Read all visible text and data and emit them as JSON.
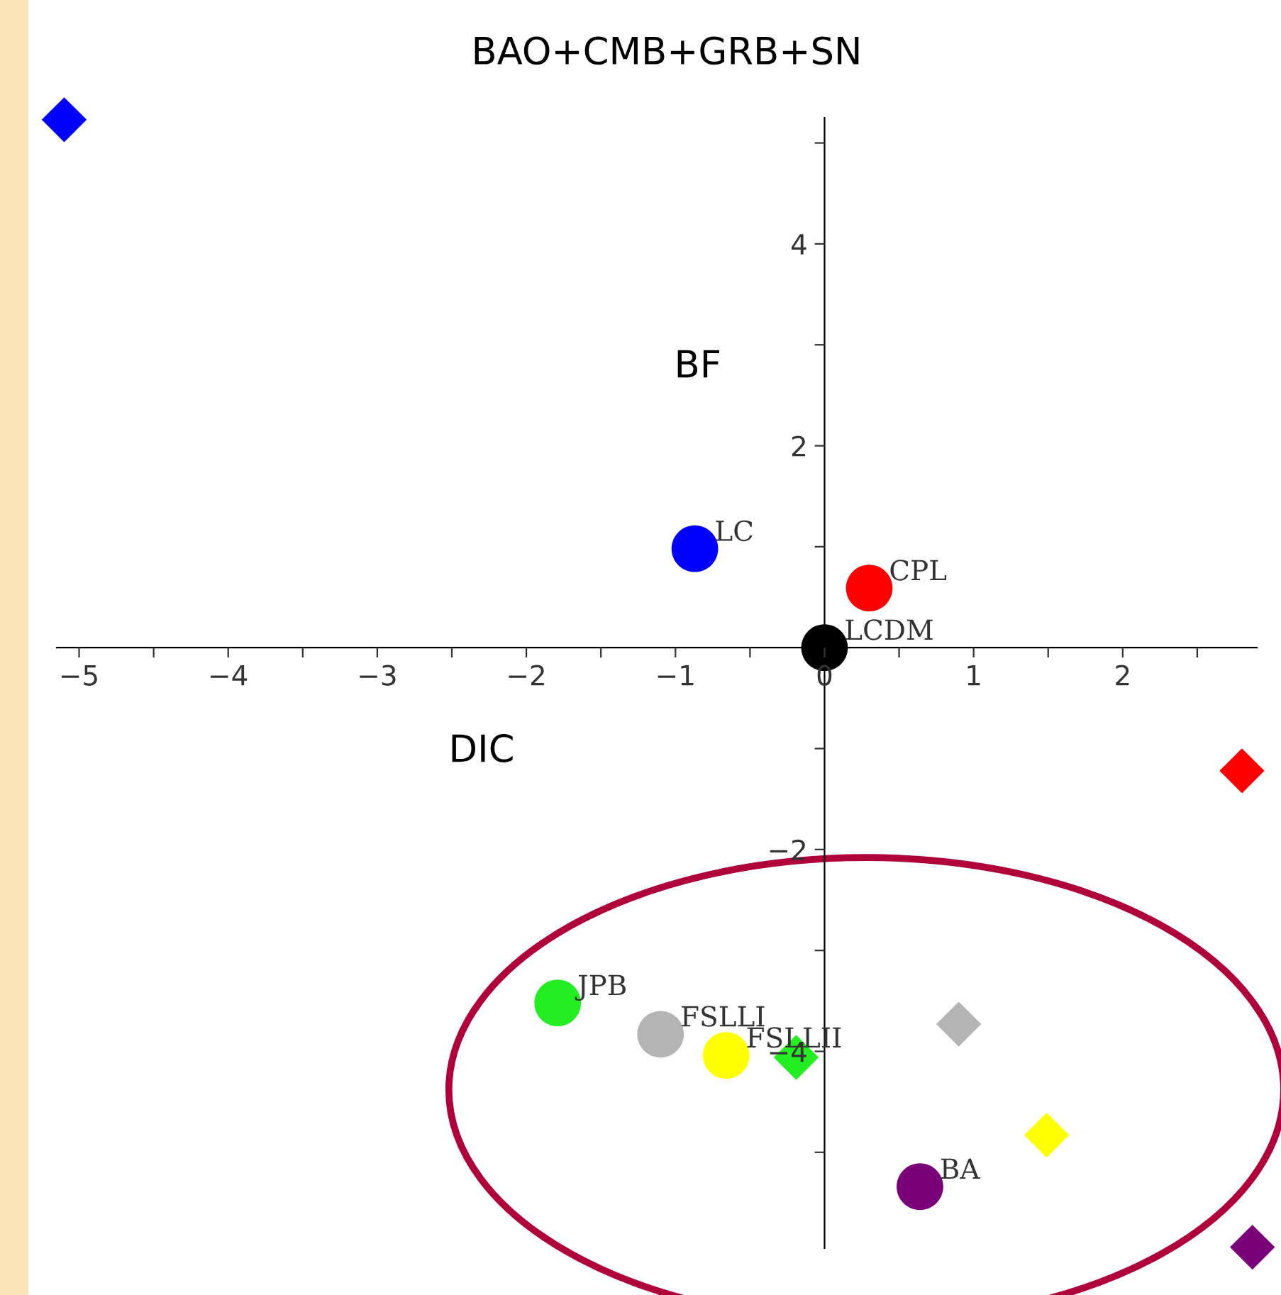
{
  "chart_data": {
    "type": "scatter",
    "title": "BAO+CMB+GRB+SN",
    "xlabel": "DIC",
    "ylabel": "BF",
    "series": [
      {
        "marker": "circle",
        "x": [
          -0.87,
          0.3,
          0,
          -1.79,
          -1.1,
          -0.66,
          0.64
        ],
        "values": [
          0.98,
          0.59,
          0,
          -3.52,
          -3.83,
          -4.04,
          -5.34
        ],
        "colors": [
          "#0000ff",
          "#ff0000",
          "#000000",
          "#22ee22",
          "#b4b4b4",
          "#ffff00",
          "#7a007a"
        ],
        "value_labels": [
          "LC",
          "CPL",
          "LCDM",
          "JPB",
          "FSLLI",
          "FSLLII",
          "BA"
        ]
      },
      {
        "marker": "diamond",
        "x": [
          -5.1,
          2.8,
          -0.19,
          0.9,
          1.49,
          2.87
        ],
        "values": [
          5.23,
          -1.22,
          -4.06,
          -3.73,
          -4.83,
          -5.94
        ],
        "colors": [
          "#0000ff",
          "#ff0000",
          "#22ee22",
          "#b4b4b4",
          "#ffff00",
          "#7a007a"
        ]
      }
    ],
    "xlim": [
      -5.15,
      2.9
    ],
    "ylim": [
      -5.95,
      5.25
    ],
    "xticks": [
      -5,
      {
        "value": -4.5,
        "label": null
      },
      -4,
      {
        "value": -3.5,
        "label": null
      },
      -3,
      {
        "value": -2.5,
        "label": null
      },
      -2,
      {
        "value": -1.5,
        "label": null
      },
      -1,
      {
        "value": -0.5,
        "label": null
      },
      0,
      {
        "value": 0.5,
        "label": null
      },
      1,
      {
        "value": 1.5,
        "label": null
      },
      2,
      {
        "value": 2.5,
        "label": null
      }
    ],
    "yticks": [
      {
        "value": -5,
        "label": null
      },
      -4,
      {
        "value": -3,
        "label": null
      },
      -2,
      {
        "value": -1,
        "label": null
      },
      {
        "value": 1,
        "label": null
      },
      2,
      {
        "value": 3,
        "label": null
      },
      4,
      {
        "value": 5,
        "label": null
      }
    ],
    "grid": false,
    "legend": false
  }
}
